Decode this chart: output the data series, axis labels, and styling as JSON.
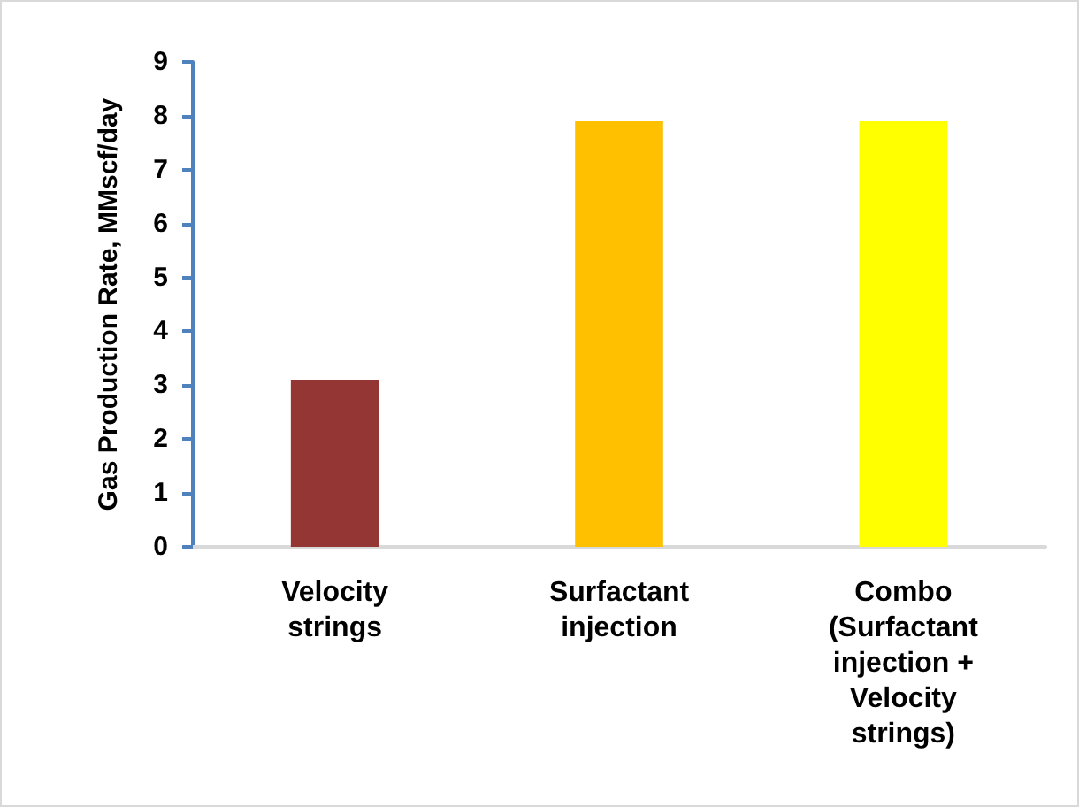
{
  "chart_data": {
    "type": "bar",
    "ylabel": "Gas Production Rate, MMscf/day",
    "categories": [
      "Velocity\nstrings",
      "Surfactant\ninjection",
      "Combo\n(Surfactant\ninjection +\nVelocity\nstrings)"
    ],
    "values": [
      3.1,
      7.9,
      7.9
    ],
    "colors": [
      "#943634",
      "#ffc000",
      "#ffff00"
    ],
    "ylim": [
      0,
      9
    ],
    "yticks": [
      0,
      1,
      2,
      3,
      4,
      5,
      6,
      7,
      8,
      9
    ],
    "grid": false
  }
}
